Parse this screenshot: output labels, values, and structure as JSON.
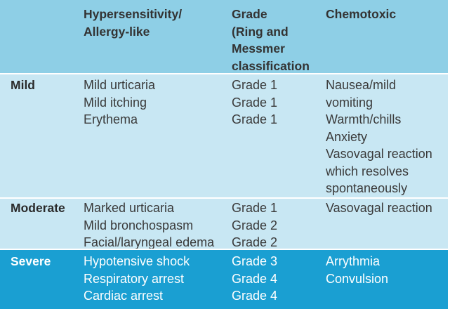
{
  "header": {
    "col0": "",
    "col1": [
      "Hypersensitivity/",
      "Allergy-like"
    ],
    "col2": [
      "Grade",
      "(Ring and",
      "Messmer",
      "classification"
    ],
    "col3": [
      "Chemotoxic"
    ]
  },
  "rows": [
    {
      "severity": "Mild",
      "reactions": [
        "Mild urticaria",
        "Mild itching",
        "Erythema"
      ],
      "grades": [
        "Grade 1",
        "Grade 1",
        "Grade 1"
      ],
      "chemotoxic": [
        "Nausea/mild",
        "vomiting",
        "Warmth/chills",
        "Anxiety",
        "Vasovagal reaction",
        "which resolves",
        "spontaneously"
      ]
    },
    {
      "severity": "Moderate",
      "reactions": [
        "Marked urticaria",
        "Mild bronchospasm",
        "Facial/laryngeal edema"
      ],
      "grades": [
        "Grade 1",
        "Grade 2",
        "Grade 2"
      ],
      "chemotoxic": [
        "Vasovagal reaction"
      ]
    },
    {
      "severity": "Severe",
      "reactions": [
        "Hypotensive shock",
        "Respiratory arrest",
        "Cardiac arrest"
      ],
      "grades": [
        "Grade 3",
        "Grade 4",
        "Grade 4"
      ],
      "chemotoxic": [
        "Arrythmia",
        "Convulsion"
      ]
    }
  ],
  "colors": {
    "header_bg": "#8ecfe6",
    "mild_bg": "#c8e7f3",
    "moderate_bg": "#c8e7f3",
    "severe_bg": "#1a9fd2"
  }
}
